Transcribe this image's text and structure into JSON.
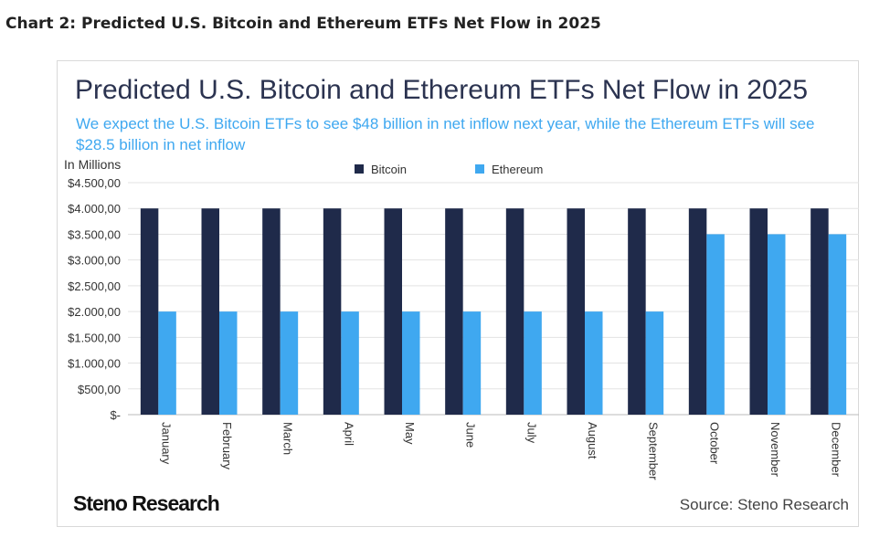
{
  "heading": "Chart 2: Predicted U.S. Bitcoin and Ethereum ETFs Net Flow in 2025",
  "source": "Source: Steno Research",
  "logo": "Steno Research",
  "chart_data": {
    "type": "bar",
    "title": "Predicted U.S. Bitcoin and Ethereum ETFs Net Flow in 2025",
    "subtitle": "We expect the U.S. Bitcoin ETFs to see $48 billion in net inflow next year, while the Ethereum ETFs will see $28.5 billion in net inflow",
    "ylabel": "In Millions",
    "ylim": [
      0,
      4500
    ],
    "yticks": [
      0,
      500,
      1000,
      1500,
      2000,
      2500,
      3000,
      3500,
      4000,
      4500
    ],
    "ytick_labels": [
      "$-",
      "$500,00",
      "$1.000,00",
      "$1.500,00",
      "$2.000,00",
      "$2.500,00",
      "$3.000,00",
      "$3.500,00",
      "$4.000,00",
      "$4.500,00"
    ],
    "grid": true,
    "legend": "top-center",
    "categories": [
      "January",
      "February",
      "March",
      "April",
      "May",
      "June",
      "July",
      "August",
      "September",
      "October",
      "November",
      "December"
    ],
    "series": [
      {
        "name": "Bitcoin",
        "color": "#1f2a4a",
        "values": [
          4000,
          4000,
          4000,
          4000,
          4000,
          4000,
          4000,
          4000,
          4000,
          4000,
          4000,
          4000
        ]
      },
      {
        "name": "Ethereum",
        "color": "#3fa8f0",
        "values": [
          2000,
          2000,
          2000,
          2000,
          2000,
          2000,
          2000,
          2000,
          2000,
          3500,
          3500,
          3500
        ]
      }
    ]
  }
}
